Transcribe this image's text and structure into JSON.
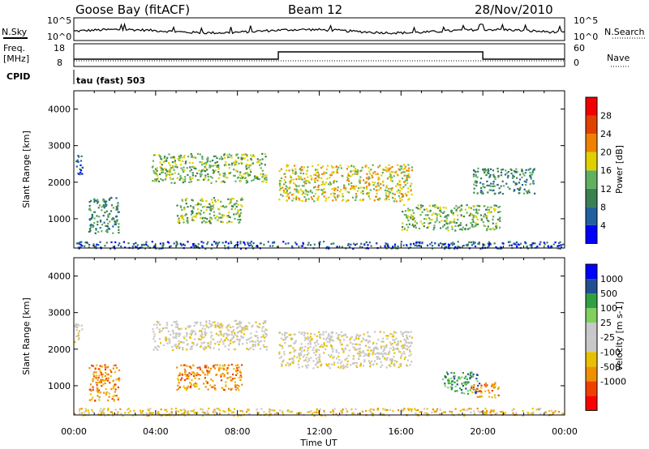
{
  "header": {
    "station": "Goose Bay (fitACF)",
    "beam": "Beam 12",
    "date": "28/Nov/2010"
  },
  "noise_panel": {
    "left_label": "N.Sky",
    "left_ticks": [
      "10^5",
      "10^0"
    ],
    "right_label": "N.Search",
    "right_ticks": [
      "10^5",
      "10^0"
    ]
  },
  "freq_panel": {
    "left_label_line1": "Freq.",
    "left_label_line2": "[MHz]",
    "left_ticks": [
      "18",
      "8"
    ],
    "right_label": "Nave",
    "right_ticks": [
      "60",
      "0"
    ],
    "cpid_label": "CPID",
    "cpid_value": "tau (fast) 503"
  },
  "colors": {
    "power": [
      "#0000ff",
      "#2060a0",
      "#3a8050",
      "#60b060",
      "#e0d000",
      "#f08000",
      "#e04000",
      "#f00000"
    ],
    "velocity": [
      "#ff0000",
      "#f04000",
      "#f09000",
      "#e8c000",
      "#c8c8c8",
      "#c8c8c8",
      "#80d060",
      "#30a040",
      "#205090",
      "#0000ff"
    ]
  },
  "chart_data": [
    {
      "type": "heatmap",
      "name": "power",
      "ylabel": "Slant Range [km]",
      "xlim_hours": [
        0,
        24
      ],
      "ylim": [
        200,
        4500
      ],
      "y_ticks": [
        1000,
        2000,
        3000,
        4000
      ],
      "x_ticks": [
        "00:00",
        "04:00",
        "08:00",
        "12:00",
        "16:00",
        "20:00",
        "00:00"
      ],
      "xlabel": "Time UT",
      "colorbar_label": "Power [dB]",
      "colorbar_ticks": [
        "4",
        "8",
        "12",
        "16",
        "20",
        "24",
        "28"
      ],
      "regions": [
        {
          "t": [
            0.0,
            0.4
          ],
          "r": [
            2200,
            2800
          ],
          "level": 1
        },
        {
          "t": [
            0.7,
            2.2
          ],
          "r": [
            600,
            1600
          ],
          "level": 2
        },
        {
          "t": [
            3.8,
            9.4
          ],
          "r": [
            2000,
            2800
          ],
          "level": 3
        },
        {
          "t": [
            5.0,
            8.2
          ],
          "r": [
            900,
            1600
          ],
          "level": 3
        },
        {
          "t": [
            10.0,
            16.5
          ],
          "r": [
            1500,
            2500
          ],
          "level": 4
        },
        {
          "t": [
            16.0,
            20.8
          ],
          "r": [
            700,
            1400
          ],
          "level": 3
        },
        {
          "t": [
            19.5,
            22.5
          ],
          "r": [
            1700,
            2400
          ],
          "level": 2
        },
        {
          "t": [
            0.0,
            24.0
          ],
          "r": [
            200,
            400
          ],
          "level": 1
        }
      ]
    },
    {
      "type": "heatmap",
      "name": "velocity",
      "ylabel": "Slant Range [km]",
      "xlim_hours": [
        0,
        24
      ],
      "ylim": [
        200,
        4500
      ],
      "y_ticks": [
        1000,
        2000,
        3000,
        4000
      ],
      "x_ticks": [
        "00:00",
        "04:00",
        "08:00",
        "12:00",
        "16:00",
        "20:00",
        "00:00"
      ],
      "xlabel": "Time UT",
      "colorbar_label": "Velocity [m s-1]",
      "colorbar_ticks": [
        "1000",
        "500",
        "100",
        "25",
        "-25",
        "-100",
        "-500",
        "-1000"
      ],
      "regions": [
        {
          "t": [
            0.0,
            0.4
          ],
          "r": [
            2200,
            2800
          ],
          "level": 4
        },
        {
          "t": [
            0.7,
            2.2
          ],
          "r": [
            600,
            1600
          ],
          "level": 2
        },
        {
          "t": [
            3.8,
            9.4
          ],
          "r": [
            2000,
            2800
          ],
          "level": 4
        },
        {
          "t": [
            5.0,
            8.2
          ],
          "r": [
            900,
            1600
          ],
          "level": 2
        },
        {
          "t": [
            10.0,
            16.5
          ],
          "r": [
            1500,
            2500
          ],
          "level": 4
        },
        {
          "t": [
            18.0,
            19.8
          ],
          "r": [
            800,
            1400
          ],
          "level": 7
        },
        {
          "t": [
            19.4,
            20.8
          ],
          "r": [
            700,
            1100
          ],
          "level": 2
        },
        {
          "t": [
            0.0,
            24.0
          ],
          "r": [
            200,
            400
          ],
          "level": 3
        }
      ]
    }
  ]
}
